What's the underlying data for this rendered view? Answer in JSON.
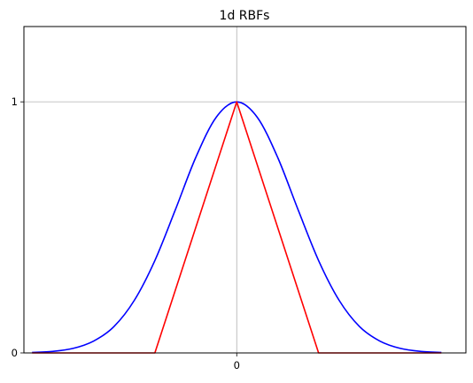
{
  "chart_data": {
    "type": "line",
    "title": "1d RBFs",
    "xlabel": "",
    "ylabel": "",
    "xlim": [
      -2.6,
      2.8
    ],
    "ylim": [
      0,
      1.3
    ],
    "grid": true,
    "x_ticks": [
      {
        "value": 0,
        "label": "0"
      }
    ],
    "y_ticks": [
      {
        "value": 0,
        "label": "0"
      },
      {
        "value": 1,
        "label": "1"
      }
    ],
    "series": [
      {
        "color": "#0000ff",
        "x": [
          -2.5,
          -2.25,
          -2.0,
          -1.75,
          -1.5,
          -1.25,
          -1.0,
          -0.75,
          -0.5,
          -0.25,
          0.0,
          0.25,
          0.5,
          0.75,
          1.0,
          1.25,
          1.5,
          1.75,
          2.0,
          2.25,
          2.5
        ],
        "y": [
          0.002,
          0.006,
          0.018,
          0.047,
          0.105,
          0.21,
          0.368,
          0.57,
          0.779,
          0.939,
          1.0,
          0.939,
          0.779,
          0.57,
          0.368,
          0.21,
          0.105,
          0.047,
          0.018,
          0.006,
          0.002
        ]
      },
      {
        "color": "#ff0000",
        "x": [
          -2.5,
          -1.0,
          0.0,
          1.0,
          2.5
        ],
        "y": [
          0.0,
          0.0,
          1.0,
          0.0,
          0.0
        ]
      }
    ]
  }
}
